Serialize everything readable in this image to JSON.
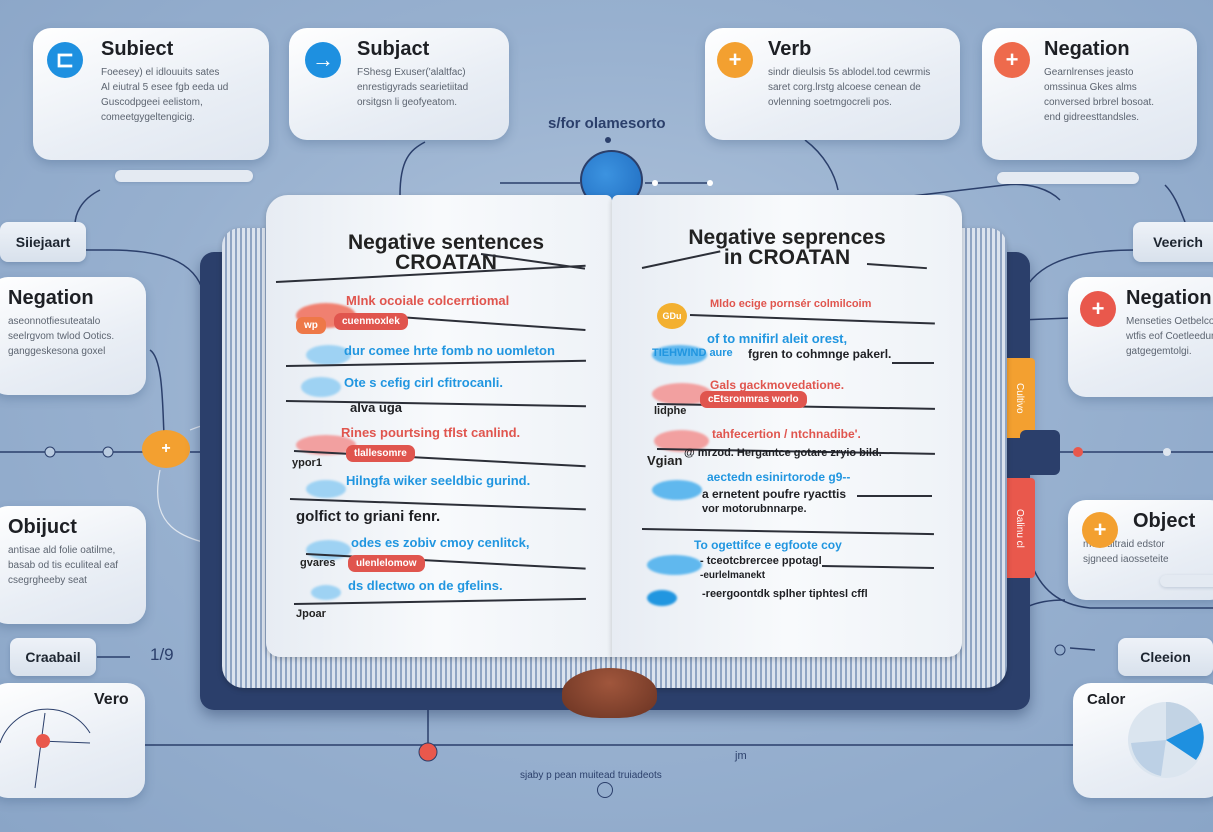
{
  "colors": {
    "background": "#97b0cf",
    "book_cover": "#2b3f6b",
    "blue": "#2196e0",
    "orange": "#f3a030",
    "red": "#e9584c"
  },
  "top_cards": [
    {
      "title": "Subiect",
      "icon": "minus-arrow-icon",
      "text": [
        "Foeesey) el idlouuits sates",
        "Al eiutral 5 esee fgb eeda ud",
        "Guscodpgeei eelistom,",
        "comeetgygeltengicig."
      ]
    },
    {
      "title": "Subjact",
      "icon": "arrow-right-icon",
      "text": [
        "FShesg Exuser('alaltfac)",
        "enrestigyrads searietiitad",
        "orsitgsn li geofyeatom."
      ]
    },
    {
      "title": "Verb",
      "icon": "plus-icon",
      "text": [
        "sindr dieulsis 5s ablodel.tod cewrmis",
        "saret corg.lrstg alcoese cenean de",
        "ovlenning soetmgocreli pos."
      ]
    },
    {
      "title": "Negation",
      "icon": "plus-icon",
      "text": [
        "Gearnlrenses jeasto",
        "omssinua Gkes alms",
        "conversed brbrel bosoat.",
        "end gidreesttandsles."
      ]
    }
  ],
  "center": {
    "caption": "s/for olamesorto",
    "bottom_caption": "sjaby p pean muitead truiadeots",
    "bottom_mark": "jm"
  },
  "left": {
    "tab_top": "Siiejaart",
    "negation": {
      "title": "Negation",
      "text": [
        "aseonnotfiesuteatalo",
        "seelrgvom twlod Ootics.",
        "ganggeskesona goxel"
      ]
    },
    "object": {
      "title": "Obijuct",
      "text": [
        "antisae ald folie oatilme,",
        "basab od tis eculiteal eaf",
        "csegrgheeby seat"
      ]
    },
    "tab_bottom": "Craabail",
    "fraction": "1/9",
    "vero": {
      "title": "Vero"
    }
  },
  "right": {
    "tab_top": "Veerich",
    "negation": {
      "title": "Negation",
      "text": [
        "Menseties Oetbelcoft",
        "wtfis eof Coetleedure",
        "gatgegemtolgi."
      ]
    },
    "object": {
      "title": "Object",
      "text": [
        "melieuitraid edstor",
        "sjgneed iaosseteite"
      ]
    },
    "tab_bottom": "Cleeion",
    "calor": {
      "title": "Calor"
    }
  },
  "bookmarks": {
    "orange": "Cultivo",
    "red": "Oalinu cl"
  },
  "book": {
    "left_page": {
      "title_line1": "Negative sentences",
      "title_line2": "CROATAN",
      "entries": {
        "e1": {
          "text": "Mlnk ocoiale colcerrtiomal",
          "tag": "cuenmoxlek",
          "badge": "wp"
        },
        "e2": {
          "text": "dur comee hrte fomb no uomleton"
        },
        "e3": {
          "text": "Ote s cefig cirl cfitrocanli.",
          "sub": "alva uga"
        },
        "e4": {
          "text": "Rines pourtsing tflst canlind.",
          "tag": "tlallesomre",
          "label": "ypor1"
        },
        "e5": {
          "text": "Hilngfa wiker seeldbic gurind.",
          "sub": "golfict to griani fenr."
        },
        "e6": {
          "text": "odes es zobiv cmoy cenlitck,",
          "tag": "ulenlelomow",
          "label": "gvares"
        },
        "e7": {
          "text": "ds dlectwo on de gfelins.",
          "label": "Jpoar"
        }
      }
    },
    "right_page": {
      "title_line1": "Negative seprences",
      "title_line2": "in CROATAN",
      "entries": {
        "e1": {
          "text": "Mldo ecige pornsér colmilcoim",
          "badge": "GDu"
        },
        "e2": {
          "text": "of to mnifirl aleit orest,",
          "blue_part": "TIEHWIND aure",
          "sub": "fgren to cohmnge pakerl."
        },
        "e3": {
          "text": "Gals gackmovedatione.",
          "tag": "cEtsronmras worlo",
          "label": "lidphe"
        },
        "e4": {
          "text": "tahfecertion / ntchnadibe'.",
          "label": "Vgian",
          "sub": "@ mrzod. Hergantce gotare zryio bild."
        },
        "e5": {
          "text": "aectedn esinirtorode g9--",
          "sub": "a ernetent poufre ryacttis",
          "sub2": "vor motorubnnarpe."
        },
        "e6": {
          "text": "To ogettifce e egfoote coy",
          "sub": "- tceotcbrercee ppotagl",
          "sub2": "-eurlelmanekt",
          "sub3": "-reergoontdk splher tiphtesl cffl"
        }
      }
    }
  }
}
